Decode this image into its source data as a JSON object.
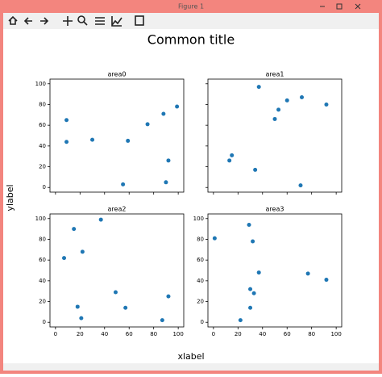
{
  "window": {
    "title": "Figure 1"
  },
  "figure": {
    "title": "Common title",
    "xlabel": "xlabel",
    "ylabel": "ylabel"
  },
  "chart_data": [
    {
      "type": "scatter",
      "title": "area0",
      "color": "#1f77b4",
      "x": [
        9,
        9,
        30,
        55,
        59,
        75,
        88,
        99,
        92,
        90
      ],
      "y": [
        65,
        44,
        46,
        3,
        45,
        61,
        71,
        78,
        26,
        5
      ],
      "xlim": [
        -4.5,
        104.5
      ],
      "ylim": [
        -4.5,
        104.5
      ],
      "xticks": [
        0,
        20,
        40,
        60,
        80,
        100
      ],
      "yticks": [
        0,
        20,
        40,
        60,
        80,
        100
      ],
      "show_xticklabels": false,
      "show_yticklabels": true
    },
    {
      "type": "scatter",
      "title": "area1",
      "color": "#1f77b4",
      "x": [
        13,
        15,
        34,
        37,
        50,
        53,
        60,
        72,
        71,
        92
      ],
      "y": [
        26,
        31,
        17,
        97,
        66,
        75,
        84,
        87,
        2,
        80
      ],
      "xlim": [
        -4.5,
        104.5
      ],
      "ylim": [
        -4.5,
        104.5
      ],
      "xticks": [
        0,
        20,
        40,
        60,
        80,
        100
      ],
      "yticks": [
        0,
        20,
        40,
        60,
        80,
        100
      ],
      "show_xticklabels": false,
      "show_yticklabels": false
    },
    {
      "type": "scatter",
      "title": "area2",
      "color": "#1f77b4",
      "x": [
        7,
        15,
        18,
        22,
        21,
        37,
        49,
        57,
        87,
        92
      ],
      "y": [
        62,
        90,
        15,
        68,
        4,
        99,
        29,
        14,
        2,
        25
      ],
      "xlim": [
        -4.5,
        104.5
      ],
      "ylim": [
        -4.5,
        104.5
      ],
      "xticks": [
        0,
        20,
        40,
        60,
        80,
        100
      ],
      "yticks": [
        0,
        20,
        40,
        60,
        80,
        100
      ],
      "show_xticklabels": true,
      "show_yticklabels": true
    },
    {
      "type": "scatter",
      "title": "area3",
      "color": "#1f77b4",
      "x": [
        1,
        22,
        29,
        32,
        30,
        33,
        30,
        37,
        77,
        92
      ],
      "y": [
        81,
        2,
        94,
        78,
        32,
        28,
        14,
        48,
        47,
        41
      ],
      "xlim": [
        -4.5,
        104.5
      ],
      "ylim": [
        -4.5,
        104.5
      ],
      "xticks": [
        0,
        20,
        40,
        60,
        80,
        100
      ],
      "yticks": [
        0,
        20,
        40,
        60,
        80,
        100
      ],
      "show_xticklabels": true,
      "show_yticklabels": true
    }
  ]
}
